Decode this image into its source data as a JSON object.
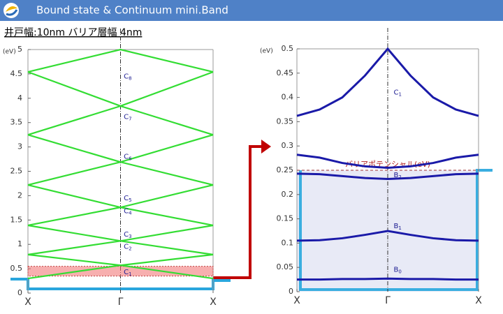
{
  "header": {
    "title": "Bound state  & Continuum mini.Band",
    "subtitle": "井戸幅:10nm バリア層幅 4nm"
  },
  "chart_data": [
    {
      "type": "line",
      "ylabel": "(eV)",
      "color": "#33dd33",
      "x": [
        -1,
        0,
        1
      ],
      "xlim": [
        -1,
        1
      ],
      "xticks": [
        {
          "value": -1,
          "label": "X"
        },
        {
          "value": 0,
          "label": "Γ"
        },
        {
          "value": 1,
          "label": "X"
        }
      ],
      "ylim": [
        0,
        5
      ],
      "yticks": [
        0,
        0.5,
        1,
        1.5,
        2,
        2.5,
        3,
        3.5,
        4,
        4.5,
        5
      ],
      "highlight_range": [
        0.35,
        0.55
      ],
      "series": [
        {
          "values": [
            0.3,
            0.57,
            0.3
          ]
        },
        {
          "values": [
            0.79,
            0.57,
            0.79
          ]
        },
        {
          "values": [
            0.79,
            1.07,
            0.79
          ]
        },
        {
          "values": [
            1.39,
            1.07,
            1.39
          ]
        },
        {
          "values": [
            1.39,
            1.76,
            1.39
          ]
        },
        {
          "values": [
            2.22,
            1.76,
            2.22
          ]
        },
        {
          "values": [
            2.22,
            2.69,
            2.22
          ]
        },
        {
          "values": [
            3.25,
            2.69,
            3.25
          ]
        },
        {
          "values": [
            3.25,
            3.84,
            3.25
          ]
        },
        {
          "values": [
            4.54,
            3.84,
            4.54
          ]
        },
        {
          "values": [
            4.54,
            5,
            4.54
          ]
        }
      ],
      "annotations": [
        {
          "text": "C",
          "sub": "8"
        },
        {
          "text": "C",
          "sub": "7"
        },
        {
          "text": "C",
          "sub": "6"
        },
        {
          "text": "C",
          "sub": "5"
        },
        {
          "text": "C",
          "sub": "4"
        },
        {
          "text": "C",
          "sub": "3"
        },
        {
          "text": "C",
          "sub": "2"
        },
        {
          "text": "C",
          "sub": "1"
        }
      ]
    },
    {
      "type": "line",
      "ylabel": "(eV)",
      "color": "#1a1aa8",
      "x": [
        -1,
        -0.75,
        -0.5,
        -0.25,
        0,
        0.25,
        0.5,
        0.75,
        1
      ],
      "xlim": [
        -1,
        1
      ],
      "xticks": [
        {
          "value": -1,
          "label": "X"
        },
        {
          "value": 0,
          "label": "Γ"
        },
        {
          "value": 1,
          "label": "X"
        }
      ],
      "ylim": [
        0,
        0.5
      ],
      "yticks": [
        0,
        0.05,
        0.1,
        0.15,
        0.2,
        0.25,
        0.3,
        0.35,
        0.4,
        0.45,
        0.5
      ],
      "barrier": {
        "value": 0.25,
        "label": "バリアポテンシャル(eV)"
      },
      "series": [
        {
          "values": [
            0.025,
            0.025,
            0.026,
            0.026,
            0.027,
            0.026,
            0.026,
            0.025,
            0.025
          ]
        },
        {
          "values": [
            0.105,
            0.106,
            0.11,
            0.117,
            0.125,
            0.117,
            0.11,
            0.106,
            0.105
          ]
        },
        {
          "values": [
            0.243,
            0.242,
            0.238,
            0.234,
            0.232,
            0.234,
            0.238,
            0.242,
            0.243
          ]
        },
        {
          "values": [
            0.282,
            0.276,
            0.265,
            0.258,
            0.255,
            0.258,
            0.265,
            0.276,
            0.282
          ]
        },
        {
          "values": [
            0.362,
            0.375,
            0.4,
            0.445,
            0.5,
            0.445,
            0.4,
            0.375,
            0.362
          ]
        }
      ],
      "annotations": [
        {
          "text": "C",
          "sub": "1"
        },
        {
          "text": "B",
          "sub": "2"
        },
        {
          "text": "B",
          "sub": "1"
        },
        {
          "text": "B",
          "sub": "0"
        }
      ]
    }
  ]
}
